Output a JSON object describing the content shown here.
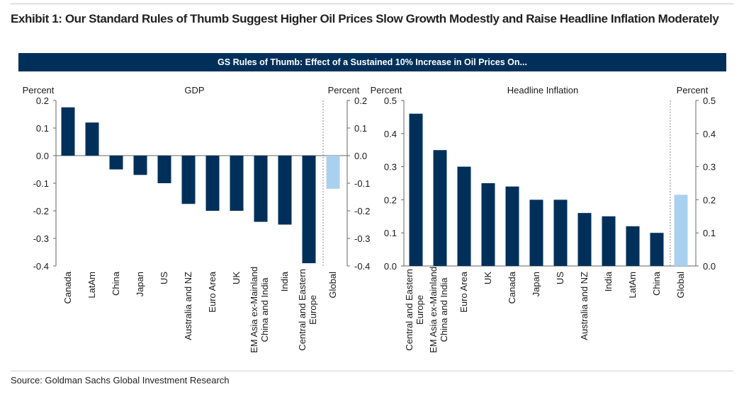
{
  "title": "Exhibit 1: Our Standard Rules of Thumb Suggest Higher Oil Prices Slow Growth Modestly and Raise Headline Inflation Moderately",
  "banner": "GS Rules of Thumb: Effect of a Sustained 10% Increase in Oil Prices On...",
  "source": "Source: Goldman Sachs Global Investment Research",
  "colors": {
    "country": "#00305a",
    "global": "#a9d1ef",
    "banner": "#00305a"
  },
  "chart_data": [
    {
      "type": "bar",
      "title": "GDP",
      "ylabel_left": "Percent",
      "ylabel_right": "Percent",
      "ylim": [
        -0.4,
        0.2
      ],
      "yticks": [
        "0.2",
        "0.1",
        "0.0",
        "-0.1",
        "-0.2",
        "-0.3",
        "-0.4"
      ],
      "categories": [
        "Canada",
        "LatAm",
        "China",
        "Japan",
        "US",
        "Australia and NZ",
        "Euro Area",
        "UK",
        "EM Asia ex-Mainland China and India",
        "India",
        "Central and Eastern Europe",
        "Global"
      ],
      "values": [
        0.175,
        0.12,
        -0.05,
        -0.07,
        -0.1,
        -0.175,
        -0.2,
        -0.2,
        -0.24,
        -0.25,
        -0.39,
        -0.12
      ]
    },
    {
      "type": "bar",
      "title": "Headline Inflation",
      "ylabel_left": "Percent",
      "ylabel_right": "Percent",
      "ylim": [
        0,
        0.5
      ],
      "yticks": [
        "0.5",
        "0.4",
        "0.3",
        "0.2",
        "0.1",
        "0.0"
      ],
      "categories": [
        "Central and Eastern Europe",
        "EM Asia ex-Mainland China and India",
        "Euro Area",
        "UK",
        "Canada",
        "Japan",
        "US",
        "Australia and NZ",
        "India",
        "LatAm",
        "China",
        "Global"
      ],
      "values": [
        0.46,
        0.35,
        0.3,
        0.25,
        0.24,
        0.2,
        0.2,
        0.16,
        0.15,
        0.12,
        0.1,
        0.215
      ]
    }
  ]
}
